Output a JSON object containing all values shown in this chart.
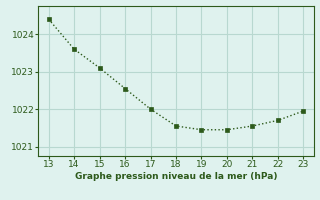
{
  "x": [
    13,
    14,
    15,
    16,
    17,
    18,
    19,
    20,
    21,
    22,
    23
  ],
  "y": [
    1024.4,
    1023.6,
    1023.1,
    1022.55,
    1022.0,
    1021.55,
    1021.45,
    1021.45,
    1021.55,
    1021.7,
    1021.95
  ],
  "xlim": [
    12.6,
    23.4
  ],
  "ylim": [
    1020.75,
    1024.75
  ],
  "xticks": [
    13,
    14,
    15,
    16,
    17,
    18,
    19,
    20,
    21,
    22,
    23
  ],
  "yticks": [
    1021,
    1022,
    1023,
    1024
  ],
  "xlabel": "Graphe pression niveau de la mer (hPa)",
  "line_color": "#2d5a1b",
  "bg_color": "#dff2ee",
  "grid_color": "#b8d8d0",
  "tick_color": "#2d5a1b",
  "label_color": "#2d5a1b",
  "marker": "s",
  "marker_size": 2.5,
  "line_width": 1.0
}
